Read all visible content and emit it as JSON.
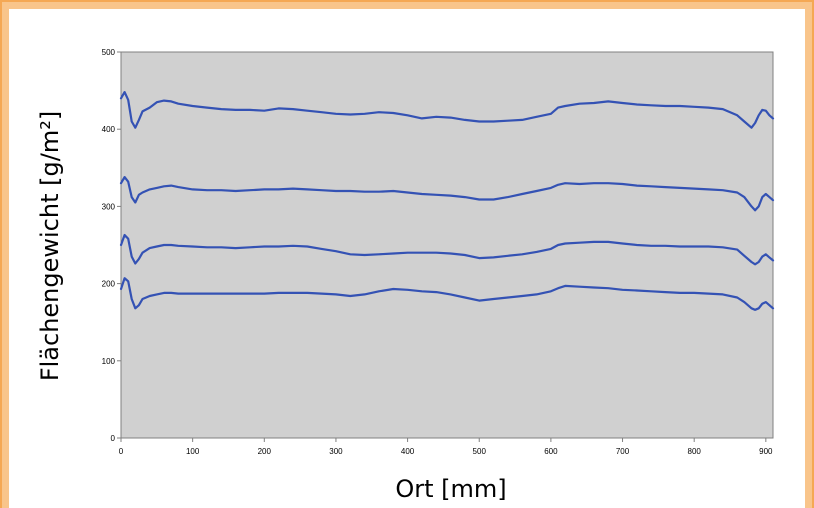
{
  "colors": {
    "border": "#F9C58B",
    "border_edge": "#F5A854",
    "plot_background": "#D0D0D0",
    "series_line": "#3452B4"
  },
  "chart_data": {
    "type": "line",
    "title": "",
    "xlabel": "Ort [mm]",
    "ylabel": "Flächengewicht [g/m²]",
    "xlim": [
      0,
      910
    ],
    "ylim": [
      0,
      500
    ],
    "xticks": [
      "0",
      "100",
      "200",
      "300",
      "400",
      "500",
      "600",
      "700",
      "800",
      "900"
    ],
    "yticks": [
      "0",
      "100",
      "200",
      "300",
      "400",
      "500"
    ],
    "grid": false,
    "legend": "none",
    "series": [
      {
        "x": [
          0,
          5,
          10,
          15,
          20,
          25,
          30,
          40,
          50,
          60,
          70,
          80,
          100,
          120,
          140,
          160,
          180,
          200,
          220,
          240,
          260,
          280,
          300,
          320,
          340,
          360,
          380,
          400,
          420,
          440,
          460,
          480,
          500,
          520,
          540,
          560,
          580,
          600,
          610,
          620,
          640,
          660,
          680,
          700,
          720,
          740,
          760,
          780,
          800,
          820,
          840,
          860,
          870,
          880,
          885,
          890,
          895,
          900,
          905,
          910
        ],
        "y": [
          440,
          448,
          438,
          410,
          402,
          412,
          423,
          428,
          435,
          437,
          436,
          433,
          430,
          428,
          426,
          425,
          425,
          424,
          427,
          426,
          424,
          422,
          420,
          419,
          420,
          422,
          421,
          418,
          414,
          416,
          415,
          412,
          410,
          410,
          411,
          412,
          416,
          420,
          428,
          430,
          433,
          434,
          436,
          434,
          432,
          431,
          430,
          430,
          429,
          428,
          426,
          418,
          410,
          402,
          408,
          418,
          425,
          424,
          418,
          414
        ]
      },
      {
        "x": [
          0,
          5,
          10,
          15,
          20,
          25,
          30,
          40,
          50,
          60,
          70,
          80,
          100,
          120,
          140,
          160,
          180,
          200,
          220,
          240,
          260,
          280,
          300,
          320,
          340,
          360,
          380,
          400,
          420,
          440,
          460,
          480,
          500,
          520,
          540,
          560,
          580,
          600,
          610,
          620,
          640,
          660,
          680,
          700,
          720,
          740,
          760,
          780,
          800,
          820,
          840,
          860,
          870,
          880,
          885,
          890,
          895,
          900,
          905,
          910
        ],
        "y": [
          330,
          338,
          332,
          312,
          305,
          315,
          318,
          322,
          324,
          326,
          327,
          325,
          322,
          321,
          321,
          320,
          321,
          322,
          322,
          323,
          322,
          321,
          320,
          320,
          319,
          319,
          320,
          318,
          316,
          315,
          314,
          312,
          309,
          309,
          312,
          316,
          320,
          324,
          328,
          330,
          329,
          330,
          330,
          329,
          327,
          326,
          325,
          324,
          323,
          322,
          321,
          318,
          312,
          300,
          295,
          300,
          312,
          316,
          312,
          308
        ]
      },
      {
        "x": [
          0,
          5,
          10,
          15,
          20,
          25,
          30,
          40,
          50,
          60,
          70,
          80,
          100,
          120,
          140,
          160,
          180,
          200,
          220,
          240,
          260,
          280,
          300,
          320,
          340,
          360,
          380,
          400,
          420,
          440,
          460,
          480,
          500,
          520,
          540,
          560,
          580,
          600,
          610,
          620,
          640,
          660,
          680,
          700,
          720,
          740,
          760,
          780,
          800,
          820,
          840,
          860,
          870,
          880,
          885,
          890,
          895,
          900,
          905,
          910
        ],
        "y": [
          250,
          263,
          258,
          235,
          226,
          232,
          240,
          246,
          248,
          250,
          250,
          249,
          248,
          247,
          247,
          246,
          247,
          248,
          248,
          249,
          248,
          245,
          242,
          238,
          237,
          238,
          239,
          240,
          240,
          240,
          239,
          237,
          233,
          234,
          236,
          238,
          241,
          245,
          250,
          252,
          253,
          254,
          254,
          252,
          250,
          249,
          249,
          248,
          248,
          248,
          247,
          244,
          236,
          228,
          225,
          228,
          235,
          238,
          234,
          230
        ]
      },
      {
        "x": [
          0,
          5,
          10,
          15,
          20,
          25,
          30,
          40,
          50,
          60,
          70,
          80,
          100,
          120,
          140,
          160,
          180,
          200,
          220,
          240,
          260,
          280,
          300,
          320,
          340,
          360,
          380,
          400,
          420,
          440,
          460,
          480,
          500,
          520,
          540,
          560,
          580,
          600,
          610,
          620,
          640,
          660,
          680,
          700,
          720,
          740,
          760,
          780,
          800,
          820,
          840,
          860,
          870,
          880,
          885,
          890,
          895,
          900,
          905,
          910
        ],
        "y": [
          193,
          207,
          203,
          180,
          168,
          172,
          180,
          184,
          186,
          188,
          188,
          187,
          187,
          187,
          187,
          187,
          187,
          187,
          188,
          188,
          188,
          187,
          186,
          184,
          186,
          190,
          193,
          192,
          190,
          189,
          186,
          182,
          178,
          180,
          182,
          184,
          186,
          190,
          194,
          197,
          196,
          195,
          194,
          192,
          191,
          190,
          189,
          188,
          188,
          187,
          186,
          182,
          176,
          168,
          166,
          168,
          174,
          176,
          172,
          168
        ]
      }
    ]
  }
}
